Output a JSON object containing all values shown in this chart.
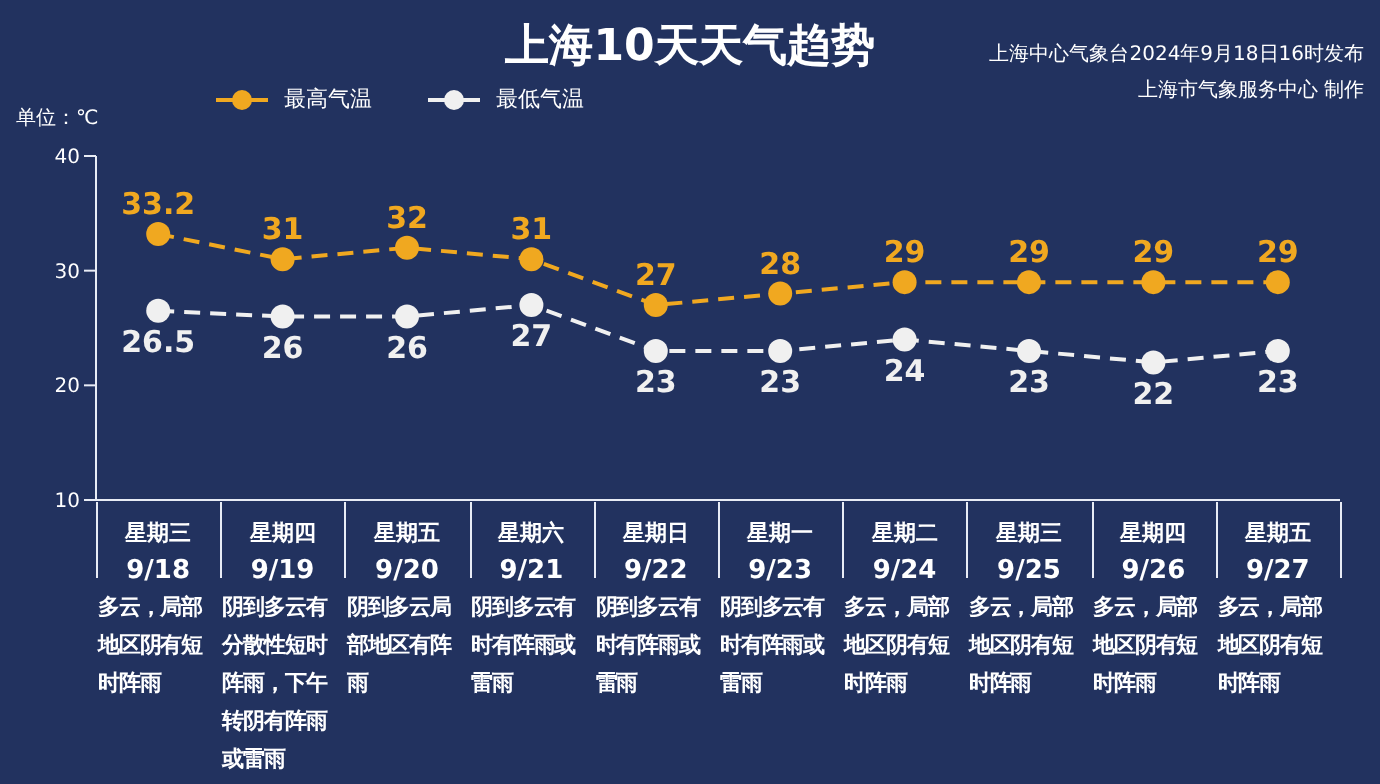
{
  "chart_data": {
    "type": "line",
    "title": "上海10天天气趋势",
    "ylabel": "单位：℃",
    "categories": [
      "星期三\n9/18",
      "星期四\n9/19",
      "星期五\n9/20",
      "星期六\n9/21",
      "星期日\n9/22",
      "星期一\n9/23",
      "星期二\n9/24",
      "星期三\n9/25",
      "星期四\n9/26",
      "星期五\n9/27"
    ],
    "series": [
      {
        "name": "最高气温",
        "color": "#f0a820",
        "values": [
          33.2,
          31,
          32,
          31,
          27,
          28,
          29,
          29,
          29,
          29
        ]
      },
      {
        "name": "最低气温",
        "color": "#f0f0f0",
        "values": [
          26.5,
          26,
          26,
          27,
          23,
          23,
          24,
          23,
          22,
          23
        ]
      }
    ],
    "ylim": [
      10,
      40
    ],
    "yticks": [
      10,
      20,
      30,
      40
    ],
    "grid": false,
    "legend": "top",
    "marker": "circle",
    "line_style": "dashed",
    "data_labels": true,
    "annotations": [
      "上海中心气象台2024年9月18日16时发布",
      "上海市气象服务中心 制作",
      "多云，局部地区阴有短时阵雨",
      "阴到多云有分散性短时阵雨，下午转阴有阵雨或雷雨",
      "阴到多云局部地区有阵雨",
      "阴到多云有时有阵雨或雷雨",
      "阴到多云有时有阵雨或雷雨",
      "阴到多云有时有阵雨或雷雨",
      "多云，局部地区阴有短时阵雨",
      "多云，局部地区阴有短时阵雨",
      "多云，局部地区阴有短时阵雨",
      "多云，局部地区阴有短时阵雨"
    ]
  }
}
